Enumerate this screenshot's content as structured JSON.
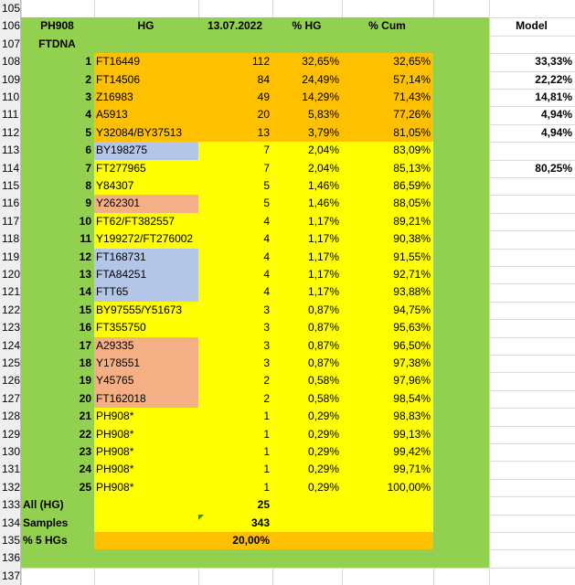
{
  "row_numbers": [
    105,
    106,
    107,
    108,
    109,
    110,
    111,
    112,
    113,
    114,
    115,
    116,
    117,
    118,
    119,
    120,
    121,
    122,
    123,
    124,
    125,
    126,
    127,
    128,
    129,
    130,
    131,
    132,
    133,
    134,
    135,
    136,
    137
  ],
  "header": {
    "a": "PH908",
    "b": "HG",
    "c": "13.07.2022",
    "d": "% HG",
    "e": "% Cum",
    "g": "Model"
  },
  "subheader": "FTDNA",
  "rows": [
    {
      "n": 1,
      "hg": "FT16449",
      "count": 112,
      "pct": "32,65%",
      "cum": "32,65%",
      "model": "33,33%"
    },
    {
      "n": 2,
      "hg": "FT14506",
      "count": 84,
      "pct": "24,49%",
      "cum": "57,14%",
      "model": "22,22%"
    },
    {
      "n": 3,
      "hg": "Z16983",
      "count": 49,
      "pct": "14,29%",
      "cum": "71,43%",
      "model": "14,81%"
    },
    {
      "n": 4,
      "hg": "A5913",
      "count": 20,
      "pct": "5,83%",
      "cum": "77,26%",
      "model": "4,94%"
    },
    {
      "n": 5,
      "hg": "Y32084/BY37513",
      "count": 13,
      "pct": "3,79%",
      "cum": "81,05%",
      "model": "4,94%"
    },
    {
      "n": 6,
      "hg": "BY198275",
      "count": 7,
      "pct": "2,04%",
      "cum": "83,09%",
      "fill": "#b4c6e7"
    },
    {
      "n": 7,
      "hg": "FT277965",
      "count": 7,
      "pct": "2,04%",
      "cum": "85,13%",
      "model": "80,25%"
    },
    {
      "n": 8,
      "hg": "Y84307",
      "count": 5,
      "pct": "1,46%",
      "cum": "86,59%"
    },
    {
      "n": 9,
      "hg": "Y262301",
      "count": 5,
      "pct": "1,46%",
      "cum": "88,05%",
      "fill": "#f4b084"
    },
    {
      "n": 10,
      "hg": "FT62/FT382557",
      "count": 4,
      "pct": "1,17%",
      "cum": "89,21%"
    },
    {
      "n": 11,
      "hg": "Y199272/FT276002",
      "count": 4,
      "pct": "1,17%",
      "cum": "90,38%"
    },
    {
      "n": 12,
      "hg": "FT168731",
      "count": 4,
      "pct": "1,17%",
      "cum": "91,55%",
      "fill": "#b4c6e7"
    },
    {
      "n": 13,
      "hg": "FTA84251",
      "count": 4,
      "pct": "1,17%",
      "cum": "92,71%",
      "fill": "#b4c6e7"
    },
    {
      "n": 14,
      "hg": "FTT65",
      "count": 4,
      "pct": "1,17%",
      "cum": "93,88%",
      "fill": "#b4c6e7"
    },
    {
      "n": 15,
      "hg": "BY97555/Y51673",
      "count": 3,
      "pct": "0,87%",
      "cum": "94,75%"
    },
    {
      "n": 16,
      "hg": "FT355750",
      "count": 3,
      "pct": "0,87%",
      "cum": "95,63%"
    },
    {
      "n": 17,
      "hg": "A29335",
      "count": 3,
      "pct": "0,87%",
      "cum": "96,50%",
      "fill": "#f4b084"
    },
    {
      "n": 18,
      "hg": "Y178551",
      "count": 3,
      "pct": "0,87%",
      "cum": "97,38%",
      "fill": "#f4b084"
    },
    {
      "n": 19,
      "hg": "Y45765",
      "count": 2,
      "pct": "0,58%",
      "cum": "97,96%",
      "fill": "#f4b084"
    },
    {
      "n": 20,
      "hg": "FT162018",
      "count": 2,
      "pct": "0,58%",
      "cum": "98,54%",
      "fill": "#f4b084"
    },
    {
      "n": 21,
      "hg": "PH908*",
      "count": 1,
      "pct": "0,29%",
      "cum": "98,83%"
    },
    {
      "n": 22,
      "hg": "PH908*",
      "count": 1,
      "pct": "0,29%",
      "cum": "99,13%"
    },
    {
      "n": 23,
      "hg": "PH908*",
      "count": 1,
      "pct": "0,29%",
      "cum": "99,42%"
    },
    {
      "n": 24,
      "hg": "PH908*",
      "count": 1,
      "pct": "0,29%",
      "cum": "99,71%"
    },
    {
      "n": 25,
      "hg": "PH908*",
      "count": 1,
      "pct": "0,29%",
      "cum": "100,00%"
    }
  ],
  "totals": {
    "all_label": "All (HG)",
    "all": 25,
    "samples_label": "Samples",
    "samples": 343,
    "top5_label": "% 5 HGs",
    "top5": "20,00%"
  }
}
